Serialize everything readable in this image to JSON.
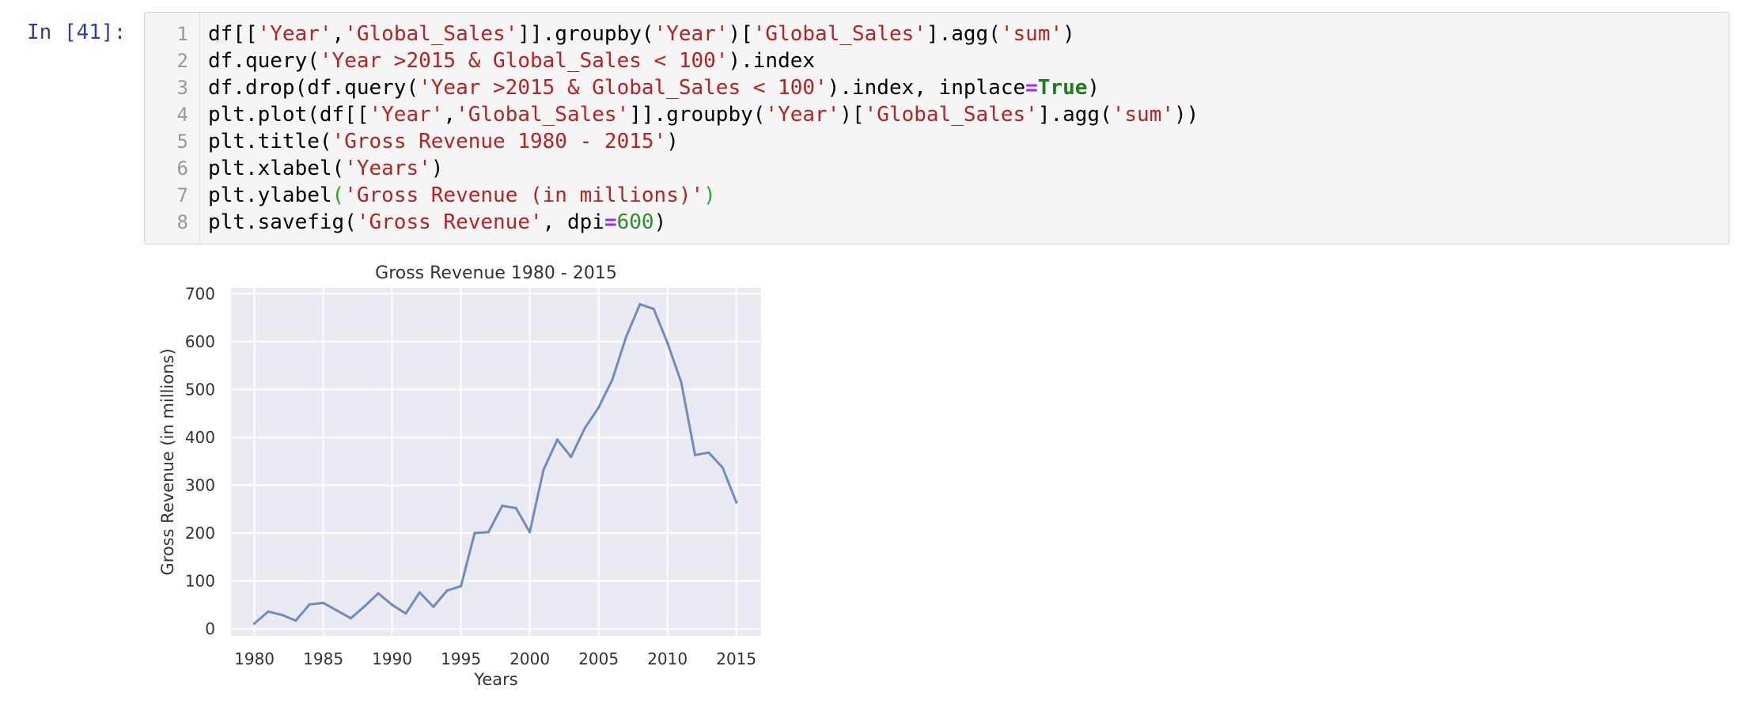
{
  "cell": {
    "prompt": "In [41]:",
    "code_lines": [
      {
        "num": "1",
        "tokens": [
          {
            "t": "df[[",
            "c": ""
          },
          {
            "t": "'Year'",
            "c": "str"
          },
          {
            "t": ",",
            "c": ""
          },
          {
            "t": "'Global_Sales'",
            "c": "str"
          },
          {
            "t": "]].groupby(",
            "c": ""
          },
          {
            "t": "'Year'",
            "c": "str"
          },
          {
            "t": ")[",
            "c": ""
          },
          {
            "t": "'Global_Sales'",
            "c": "str"
          },
          {
            "t": "].agg(",
            "c": ""
          },
          {
            "t": "'sum'",
            "c": "str"
          },
          {
            "t": ")",
            "c": ""
          }
        ]
      },
      {
        "num": "2",
        "tokens": [
          {
            "t": "df.query(",
            "c": ""
          },
          {
            "t": "'Year >2015 & Global_Sales < 100'",
            "c": "str"
          },
          {
            "t": ").index",
            "c": ""
          }
        ]
      },
      {
        "num": "3",
        "tokens": [
          {
            "t": "df.drop(df.query(",
            "c": ""
          },
          {
            "t": "'Year >2015 & Global_Sales < 100'",
            "c": "str"
          },
          {
            "t": ").index, inplace",
            "c": ""
          },
          {
            "t": "=",
            "c": "op"
          },
          {
            "t": "True",
            "c": "kw"
          },
          {
            "t": ")",
            "c": ""
          }
        ]
      },
      {
        "num": "4",
        "tokens": [
          {
            "t": "plt.plot(df[[",
            "c": ""
          },
          {
            "t": "'Year'",
            "c": "str"
          },
          {
            "t": ",",
            "c": ""
          },
          {
            "t": "'Global_Sales'",
            "c": "str"
          },
          {
            "t": "]].groupby(",
            "c": ""
          },
          {
            "t": "'Year'",
            "c": "str"
          },
          {
            "t": ")[",
            "c": ""
          },
          {
            "t": "'Global_Sales'",
            "c": "str"
          },
          {
            "t": "].agg(",
            "c": ""
          },
          {
            "t": "'sum'",
            "c": "str"
          },
          {
            "t": "))",
            "c": ""
          }
        ]
      },
      {
        "num": "5",
        "tokens": [
          {
            "t": "plt.title(",
            "c": ""
          },
          {
            "t": "'Gross Revenue 1980 - 2015'",
            "c": "str"
          },
          {
            "t": ")",
            "c": ""
          }
        ]
      },
      {
        "num": "6",
        "tokens": [
          {
            "t": "plt.xlabel(",
            "c": ""
          },
          {
            "t": "'Years'",
            "c": "str"
          },
          {
            "t": ")",
            "c": ""
          }
        ]
      },
      {
        "num": "7",
        "tokens": [
          {
            "t": "plt.ylabel",
            "c": ""
          },
          {
            "t": "(",
            "c": "grn"
          },
          {
            "t": "'Gross Revenue (in millions)'",
            "c": "str"
          },
          {
            "t": ")",
            "c": "grn"
          }
        ]
      },
      {
        "num": "8",
        "tokens": [
          {
            "t": "plt.savefig(",
            "c": ""
          },
          {
            "t": "'Gross Revenue'",
            "c": "str"
          },
          {
            "t": ", dpi",
            "c": ""
          },
          {
            "t": "=",
            "c": "op"
          },
          {
            "t": "600",
            "c": "num"
          },
          {
            "t": ")",
            "c": ""
          }
        ]
      }
    ]
  },
  "colors": {
    "prompt": "#303f9f",
    "string": "#ba2121",
    "keyword": "#1a7f16",
    "operator": "#aa22ff",
    "number": "#2e8b2e",
    "plot_bg": "#eaeaf2",
    "grid": "#ffffff",
    "line": "#6f8cbd"
  },
  "chart_data": {
    "type": "line",
    "title": "Gross Revenue 1980 - 2015",
    "xlabel": "Years",
    "ylabel": "Gross Revenue (in millions)",
    "xlim": [
      1978.3,
      2016.8
    ],
    "ylim": [
      -15,
      712
    ],
    "xticks": [
      1980,
      1985,
      1990,
      1995,
      2000,
      2005,
      2010,
      2015
    ],
    "yticks": [
      0,
      100,
      200,
      300,
      400,
      500,
      600,
      700
    ],
    "grid": true,
    "style": "seaborn-darkgrid",
    "x": [
      1980,
      1981,
      1982,
      1983,
      1984,
      1985,
      1986,
      1987,
      1988,
      1989,
      1990,
      1991,
      1992,
      1993,
      1994,
      1995,
      1996,
      1997,
      1998,
      1999,
      2000,
      2001,
      2002,
      2003,
      2004,
      2005,
      2006,
      2007,
      2008,
      2009,
      2010,
      2011,
      2012,
      2013,
      2014,
      2015
    ],
    "y": [
      11,
      36,
      29,
      17,
      51,
      54,
      38,
      22,
      47,
      74,
      50,
      32,
      76,
      46,
      80,
      89,
      200,
      202,
      257,
      252,
      202,
      332,
      395,
      359,
      419,
      462,
      521,
      610,
      678,
      668,
      597,
      515,
      363,
      368,
      337,
      264
    ]
  }
}
